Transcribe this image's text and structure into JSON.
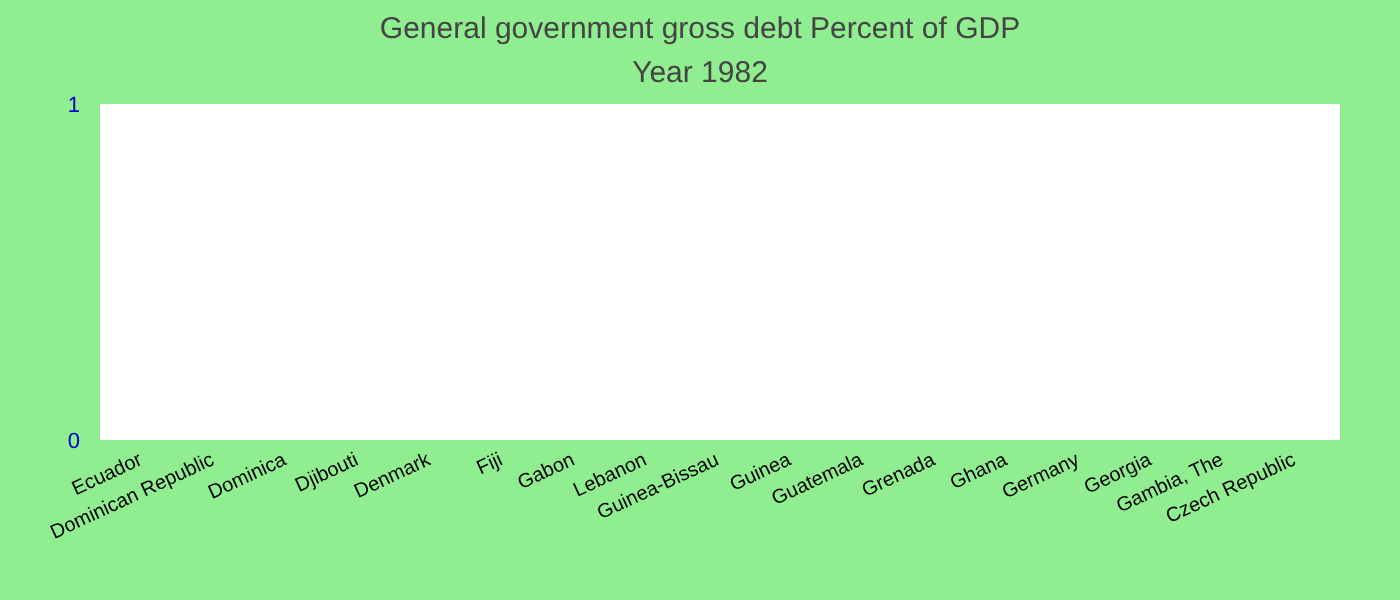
{
  "chart_data": {
    "type": "bar",
    "title": "General government gross debt  Percent of GDP",
    "subtitle": "Year 1982",
    "categories": [
      "Ecuador",
      "Dominican Republic",
      "Dominica",
      "Djibouti",
      "Denmark",
      "Fiji",
      "Gabon",
      "Lebanon",
      "Guinea-Bissau",
      "Guinea",
      "Guatemala",
      "Grenada",
      "Ghana",
      "Germany",
      "Georgia",
      "Gambia, The",
      "Czech Republic"
    ],
    "values": [
      0,
      0,
      0,
      0,
      0,
      0,
      0,
      0,
      0,
      0,
      0,
      0,
      0,
      0,
      0,
      0,
      0
    ],
    "ylim": [
      0,
      1
    ],
    "yticks": [
      0,
      1
    ],
    "grid": false
  }
}
